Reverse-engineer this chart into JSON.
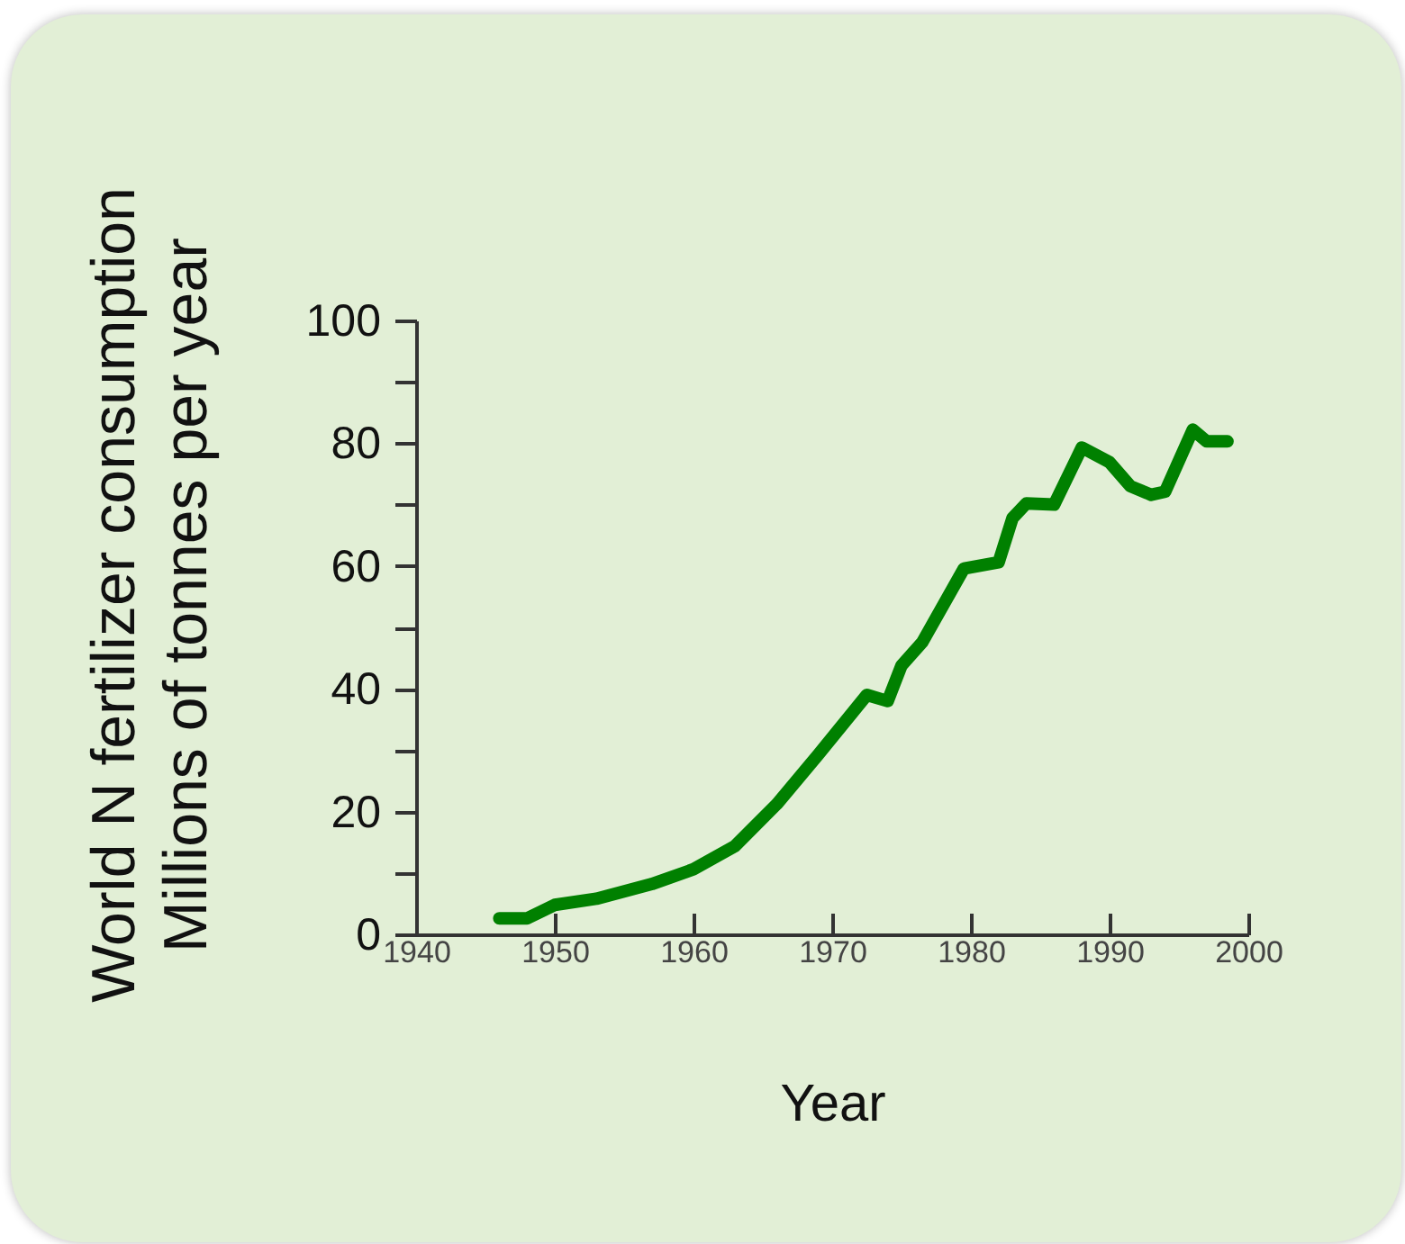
{
  "chart_data": {
    "type": "line",
    "ylabel": "World N fertilizer consumption\nMillions of tonnes per year",
    "xlabel": "Year",
    "x": [
      1946,
      1948,
      1950,
      1953,
      1957,
      1960,
      1963,
      1966,
      1969,
      1972.5,
      1974,
      1975,
      1976.5,
      1979.5,
      1982,
      1983,
      1984,
      1986,
      1988,
      1990,
      1991.5,
      1993,
      1994,
      1996,
      1997,
      1998.5
    ],
    "series": [
      {
        "color": "#008000",
        "values": [
          2.6,
          2.6,
          4.8,
          5.8,
          8.2,
          10.6,
          14.4,
          21.2,
          29.3,
          39,
          38,
          43.8,
          47.6,
          59.6,
          60.6,
          67.8,
          70.2,
          70,
          79.3,
          76.9,
          73,
          71.6,
          72.1,
          82.2,
          80.3,
          80.3
        ]
      }
    ],
    "xlim": [
      1940,
      2000
    ],
    "xticks": [
      1940,
      1950,
      1960,
      1970,
      1980,
      1990,
      2000
    ],
    "ylim": [
      0,
      100
    ],
    "yticks": [
      0,
      {
        "value": 10,
        "label": null
      },
      20,
      {
        "value": 30,
        "label": null
      },
      40,
      {
        "value": 50,
        "label": null
      },
      60,
      {
        "value": 70,
        "label": null
      },
      80,
      {
        "value": 90,
        "label": null
      },
      100
    ],
    "grid": false,
    "line_style": "solid"
  }
}
